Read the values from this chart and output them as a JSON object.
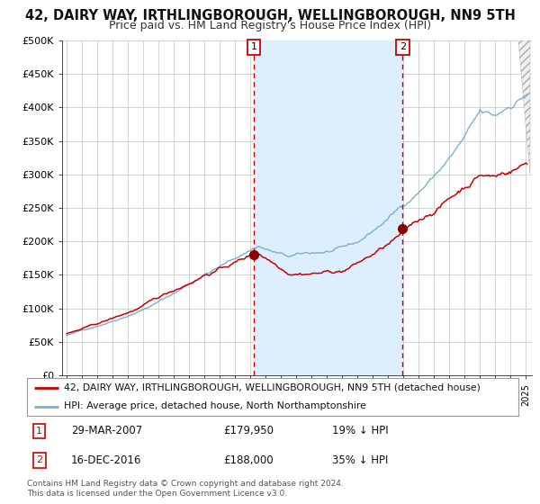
{
  "title": "42, DAIRY WAY, IRTHLINGBOROUGH, WELLINGBOROUGH, NN9 5TH",
  "subtitle": "Price paid vs. HM Land Registry's House Price Index (HPI)",
  "ylabel_ticks": [
    "£0",
    "£50K",
    "£100K",
    "£150K",
    "£200K",
    "£250K",
    "£300K",
    "£350K",
    "£400K",
    "£450K",
    "£500K"
  ],
  "ytick_values": [
    0,
    50000,
    100000,
    150000,
    200000,
    250000,
    300000,
    350000,
    400000,
    450000,
    500000
  ],
  "year_start": 1995,
  "year_end": 2025,
  "transaction1_date": 2007.23,
  "transaction1_price": 179950,
  "transaction1_label": "1",
  "transaction1_display": "29-MAR-2007",
  "transaction1_price_str": "£179,950",
  "transaction1_hpi": "19% ↓ HPI",
  "transaction2_date": 2016.96,
  "transaction2_price": 188000,
  "transaction2_label": "2",
  "transaction2_display": "16-DEC-2016",
  "transaction2_price_str": "£188,000",
  "transaction2_hpi": "35% ↓ HPI",
  "hpi_line_color": "#7ab0d4",
  "price_line_color": "#cc0000",
  "shaded_color": "#ddeeff",
  "dot_color": "#880000",
  "vline_color": "#cc0000",
  "bg_color": "#ffffff",
  "grid_color": "#cccccc",
  "legend_box_label1": "42, DAIRY WAY, IRTHLINGBOROUGH, WELLINGBOROUGH, NN9 5TH (detached house)",
  "legend_box_label2": "HPI: Average price, detached house, North Northamptonshire",
  "footer_text": "Contains HM Land Registry data © Crown copyright and database right 2024.\nThis data is licensed under the Open Government Licence v3.0.",
  "title_fontsize": 10.5,
  "subtitle_fontsize": 9
}
